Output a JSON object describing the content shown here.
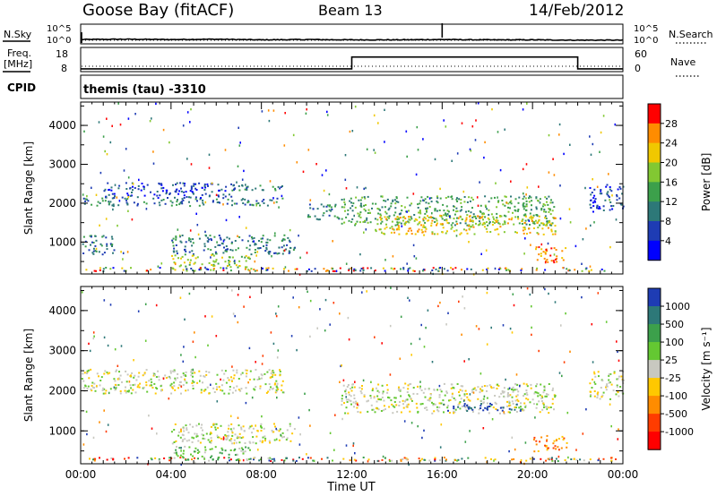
{
  "header": {
    "station": "Goose Bay (fitACF)",
    "beam": "Beam 13",
    "date": "14/Feb/2012"
  },
  "top_panels": {
    "nsky_label": "N.Sky",
    "nsearch_label": "N.Search",
    "noise_ticks": [
      "10^5",
      "10^0"
    ],
    "freq_label": "Freq.",
    "freq_unit": "[MHz]",
    "freq_ticks": [
      "18",
      "8"
    ],
    "nave_label": "Nave",
    "nave_ticks": [
      "60",
      "0"
    ],
    "cpid_label": "CPID",
    "cpid_value": "themis (tau) -3310"
  },
  "chart_data": [
    {
      "type": "line",
      "name": "noise",
      "x": [
        0,
        2,
        4,
        6,
        8,
        10,
        12,
        14,
        16,
        18,
        20,
        22,
        24
      ],
      "series": [
        {
          "name": "N.Sky",
          "values": [
            0.55,
            0.6,
            0.55,
            0.6,
            0.5,
            0.55,
            0.5,
            0.5,
            0.55,
            0.5,
            0.5,
            0.45,
            0.45
          ]
        }
      ],
      "spike_hour": 16.0
    },
    {
      "type": "line",
      "name": "frequency",
      "x": [
        0,
        12,
        12,
        22,
        22,
        24
      ],
      "series": [
        {
          "name": "Freq",
          "values": [
            8.5,
            8.5,
            14.5,
            14.5,
            8.5,
            8.5
          ]
        }
      ],
      "ylim": [
        8,
        18
      ]
    },
    {
      "type": "heatmap",
      "name": "power",
      "ylabel": "Slant Range [km]",
      "ylim": [
        180,
        4600
      ],
      "xlim": [
        0,
        24
      ],
      "yticks": [
        "1000",
        "2000",
        "3000",
        "4000"
      ],
      "colorbar": {
        "label": "Power [dB]",
        "ticks": [
          "4",
          "8",
          "12",
          "16",
          "20",
          "24",
          "28"
        ],
        "colors": [
          "#0000ff",
          "#1e3cb4",
          "#2d7878",
          "#3ca04b",
          "#82c832",
          "#f0c800",
          "#ff8c00",
          "#ff0000"
        ]
      },
      "regions": [
        {
          "t0": 0.0,
          "t1": 9.0,
          "r0": 1950,
          "r1": 2150,
          "level": 2
        },
        {
          "t0": 1.0,
          "t1": 7.0,
          "r0": 2150,
          "r1": 2550,
          "level": 1
        },
        {
          "t0": 6.0,
          "t1": 9.0,
          "r0": 2350,
          "r1": 2500,
          "level": 2
        },
        {
          "t0": 0.0,
          "t1": 1.5,
          "r0": 700,
          "r1": 1200,
          "level": 2
        },
        {
          "t0": 4.0,
          "t1": 9.5,
          "r0": 700,
          "r1": 1200,
          "level": 2
        },
        {
          "t0": 4.0,
          "t1": 7.5,
          "r0": 300,
          "r1": 700,
          "level": 4
        },
        {
          "t0": 11.5,
          "t1": 21.0,
          "r0": 1450,
          "r1": 2200,
          "level": 3
        },
        {
          "t0": 13.0,
          "t1": 21.0,
          "r0": 1200,
          "r1": 1700,
          "level": 5
        },
        {
          "t0": 20.0,
          "t1": 21.5,
          "r0": 500,
          "r1": 900,
          "level": 6
        },
        {
          "t0": 22.5,
          "t1": 24.0,
          "r0": 1800,
          "r1": 2500,
          "level": 1
        },
        {
          "t0": 10.0,
          "t1": 11.5,
          "r0": 1600,
          "r1": 2000,
          "level": 2
        }
      ]
    },
    {
      "type": "heatmap",
      "name": "velocity",
      "ylabel": "Slant Range [km]",
      "ylim": [
        180,
        4600
      ],
      "xlim": [
        0,
        24
      ],
      "yticks": [
        "1000",
        "2000",
        "3000",
        "4000"
      ],
      "xticks": [
        "00:00",
        "04:00",
        "08:00",
        "12:00",
        "16:00",
        "20:00",
        "00:00"
      ],
      "xlabel": "Time UT",
      "colorbar": {
        "label": "Velocity [m s⁻¹]",
        "ticks": [
          "1000",
          "500",
          "100",
          "25",
          "-25",
          "-100",
          "-500",
          "-1000"
        ],
        "colors": [
          "#1e3cb4",
          "#2d7878",
          "#3ca04b",
          "#64c832",
          "#c8c8c0",
          "#ffc800",
          "#ff8c00",
          "#ff3c00",
          "#ff0000"
        ]
      },
      "regions": [
        {
          "t0": 0.0,
          "t1": 9.0,
          "r0": 1950,
          "r1": 2550,
          "level": 4
        },
        {
          "t0": 4.0,
          "t1": 9.5,
          "r0": 700,
          "r1": 1200,
          "level": 4
        },
        {
          "t0": 4.0,
          "t1": 7.5,
          "r0": 300,
          "r1": 650,
          "level": 3
        },
        {
          "t0": 11.5,
          "t1": 21.0,
          "r0": 1450,
          "r1": 2200,
          "level": 4
        },
        {
          "t0": 16.0,
          "t1": 19.5,
          "r0": 1500,
          "r1": 1700,
          "level": 0
        },
        {
          "t0": 20.0,
          "t1": 21.5,
          "r0": 500,
          "r1": 900,
          "level": 6
        },
        {
          "t0": 22.5,
          "t1": 24.0,
          "r0": 1800,
          "r1": 2500,
          "level": 4
        }
      ]
    }
  ]
}
